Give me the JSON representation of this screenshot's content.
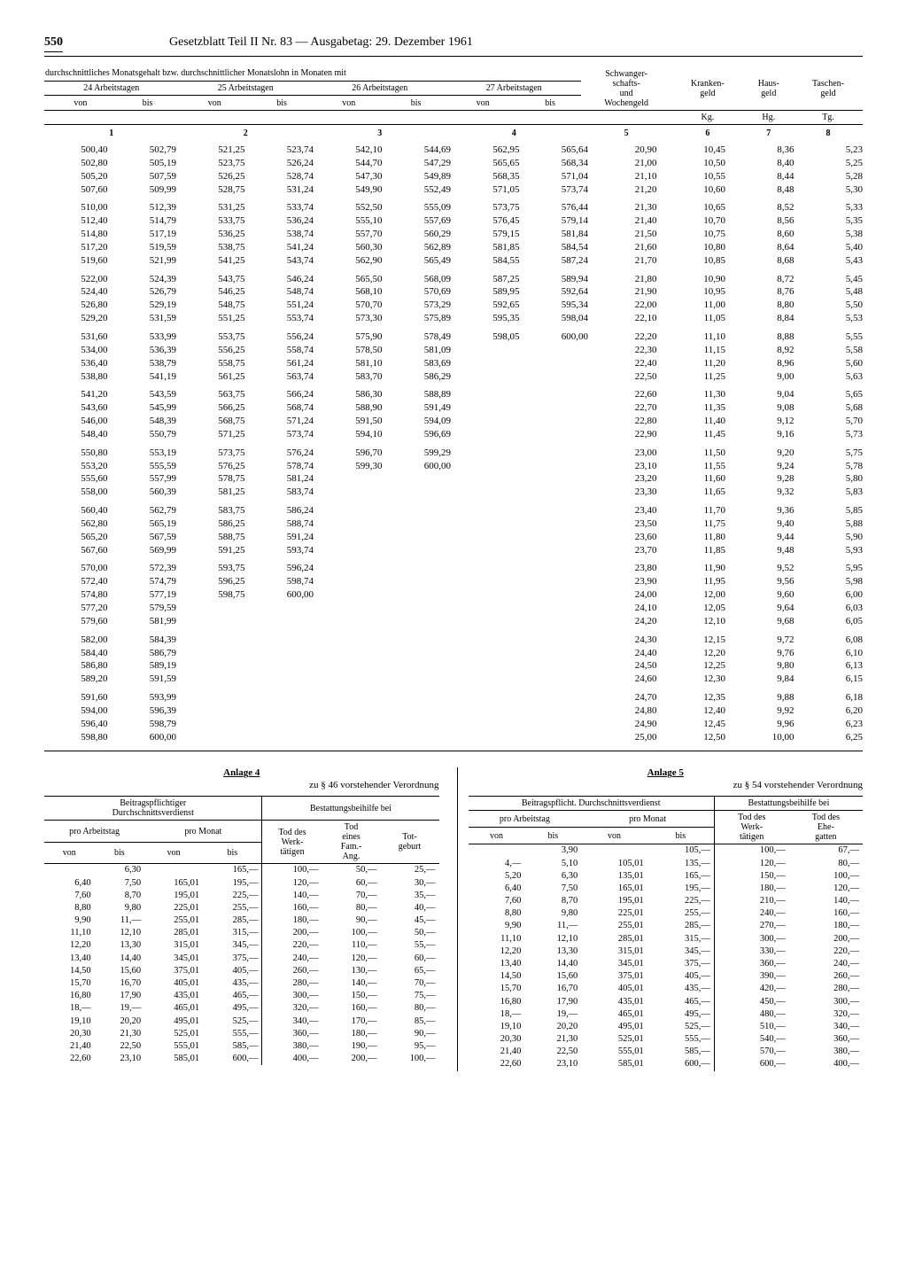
{
  "page_number": "550",
  "doc_title": "Gesetzblatt Teil II Nr. 83 — Ausgabetag: 29. Dezember 1961",
  "main": {
    "super_label": "durchschnittliches Monatsgehalt bzw. durchschnittlicher Monatslohn in Monaten mit",
    "groups": [
      "24 Arbeitstagen",
      "25 Arbeitstagen",
      "26 Arbeitstagen",
      "27 Arbeitstagen"
    ],
    "extra_cols": [
      "Schwanger-\nschafts-\nund\nWochengeld",
      "Kranken-\ngeld",
      "Haus-\ngeld",
      "Taschen-\ngeld"
    ],
    "sub_vb": [
      "von",
      "bis"
    ],
    "abbr": [
      "",
      "",
      "Kg.",
      "Hg.",
      "Tg."
    ],
    "colnums": [
      "1",
      "2",
      "3",
      "4",
      "5",
      "6",
      "7",
      "8"
    ],
    "columns": [
      [
        [
          "500,40",
          "502,80",
          "505,20",
          "507,60"
        ],
        [
          "510,00",
          "512,40",
          "514,80",
          "517,20",
          "519,60"
        ],
        [
          "522,00",
          "524,40",
          "526,80",
          "529,20"
        ],
        [
          "531,60",
          "534,00",
          "536,40",
          "538,80"
        ],
        [
          "541,20",
          "543,60",
          "546,00",
          "548,40"
        ],
        [
          "550,80",
          "553,20",
          "555,60",
          "558,00"
        ],
        [
          "560,40",
          "562,80",
          "565,20",
          "567,60"
        ],
        [
          "570,00",
          "572,40",
          "574,80",
          "577,20",
          "579,60"
        ],
        [
          "582,00",
          "584,40",
          "586,80",
          "589,20"
        ],
        [
          "591,60",
          "594,00",
          "596,40",
          "598,80"
        ]
      ],
      [
        [
          "502,79",
          "505,19",
          "507,59",
          "509,99"
        ],
        [
          "512,39",
          "514,79",
          "517,19",
          "519,59",
          "521,99"
        ],
        [
          "524,39",
          "526,79",
          "529,19",
          "531,59"
        ],
        [
          "533,99",
          "536,39",
          "538,79",
          "541,19"
        ],
        [
          "543,59",
          "545,99",
          "548,39",
          "550,79"
        ],
        [
          "553,19",
          "555,59",
          "557,99",
          "560,39"
        ],
        [
          "562,79",
          "565,19",
          "567,59",
          "569,99"
        ],
        [
          "572,39",
          "574,79",
          "577,19",
          "579,59",
          "581,99"
        ],
        [
          "584,39",
          "586,79",
          "589,19",
          "591,59"
        ],
        [
          "593,99",
          "596,39",
          "598,79",
          "600,00"
        ]
      ],
      [
        [
          "521,25",
          "523,75",
          "526,25",
          "528,75"
        ],
        [
          "531,25",
          "533,75",
          "536,25",
          "538,75",
          "541,25"
        ],
        [
          "543,75",
          "546,25",
          "548,75",
          "551,25"
        ],
        [
          "553,75",
          "556,25",
          "558,75",
          "561,25"
        ],
        [
          "563,75",
          "566,25",
          "568,75",
          "571,25"
        ],
        [
          "573,75",
          "576,25",
          "578,75",
          "581,25"
        ],
        [
          "583,75",
          "586,25",
          "588,75",
          "591,25"
        ],
        [
          "593,75",
          "596,25",
          "598,75"
        ]
      ],
      [
        [
          "523,74",
          "526,24",
          "528,74",
          "531,24"
        ],
        [
          "533,74",
          "536,24",
          "538,74",
          "541,24",
          "543,74"
        ],
        [
          "546,24",
          "548,74",
          "551,24",
          "553,74"
        ],
        [
          "556,24",
          "558,74",
          "561,24",
          "563,74"
        ],
        [
          "566,24",
          "568,74",
          "571,24",
          "573,74"
        ],
        [
          "576,24",
          "578,74",
          "581,24",
          "583,74"
        ],
        [
          "586,24",
          "588,74",
          "591,24",
          "593,74"
        ],
        [
          "596,24",
          "598,74",
          "600,00"
        ]
      ],
      [
        [
          "542,10",
          "544,70",
          "547,30",
          "549,90"
        ],
        [
          "552,50",
          "555,10",
          "557,70",
          "560,30",
          "562,90"
        ],
        [
          "565,50",
          "568,10",
          "570,70",
          "573,30"
        ],
        [
          "575,90",
          "578,50",
          "581,10",
          "583,70"
        ],
        [
          "586,30",
          "588,90",
          "591,50",
          "594,10"
        ],
        [
          "596,70",
          "599,30"
        ]
      ],
      [
        [
          "544,69",
          "547,29",
          "549,89",
          "552,49"
        ],
        [
          "555,09",
          "557,69",
          "560,29",
          "562,89",
          "565,49"
        ],
        [
          "568,09",
          "570,69",
          "573,29",
          "575,89"
        ],
        [
          "578,49",
          "581,09",
          "583,69",
          "586,29"
        ],
        [
          "588,89",
          "591,49",
          "594,09",
          "596,69"
        ],
        [
          "599,29",
          "600,00"
        ]
      ],
      [
        [
          "562,95",
          "565,65",
          "568,35",
          "571,05"
        ],
        [
          "573,75",
          "576,45",
          "579,15",
          "581,85",
          "584,55"
        ],
        [
          "587,25",
          "589,95",
          "592,65",
          "595,35"
        ],
        [
          "598,05"
        ]
      ],
      [
        [
          "565,64",
          "568,34",
          "571,04",
          "573,74"
        ],
        [
          "576,44",
          "579,14",
          "581,84",
          "584,54",
          "587,24"
        ],
        [
          "589,94",
          "592,64",
          "595,34",
          "598,04"
        ],
        [
          "600,00"
        ]
      ],
      [
        [
          "20,90",
          "21,00",
          "21,10",
          "21,20"
        ],
        [
          "21,30",
          "21,40",
          "21,50",
          "21,60",
          "21,70"
        ],
        [
          "21,80",
          "21,90",
          "22,00",
          "22,10"
        ],
        [
          "22,20",
          "22,30",
          "22,40",
          "22,50"
        ],
        [
          "22,60",
          "22,70",
          "22,80",
          "22,90"
        ],
        [
          "23,00",
          "23,10",
          "23,20",
          "23,30"
        ],
        [
          "23,40",
          "23,50",
          "23,60",
          "23,70"
        ],
        [
          "23,80",
          "23,90",
          "24,00",
          "24,10",
          "24,20"
        ],
        [
          "24,30",
          "24,40",
          "24,50",
          "24,60"
        ],
        [
          "24,70",
          "24,80",
          "24,90",
          "25,00"
        ]
      ],
      [
        [
          "10,45",
          "10,50",
          "10,55",
          "10,60"
        ],
        [
          "10,65",
          "10,70",
          "10,75",
          "10,80",
          "10,85"
        ],
        [
          "10,90",
          "10,95",
          "11,00",
          "11,05"
        ],
        [
          "11,10",
          "11,15",
          "11,20",
          "11,25"
        ],
        [
          "11,30",
          "11,35",
          "11,40",
          "11,45"
        ],
        [
          "11,50",
          "11,55",
          "11,60",
          "11,65"
        ],
        [
          "11,70",
          "11,75",
          "11,80",
          "11,85"
        ],
        [
          "11,90",
          "11,95",
          "12,00",
          "12,05",
          "12,10"
        ],
        [
          "12,15",
          "12,20",
          "12,25",
          "12,30"
        ],
        [
          "12,35",
          "12,40",
          "12,45",
          "12,50"
        ]
      ],
      [
        [
          "8,36",
          "8,40",
          "8,44",
          "8,48"
        ],
        [
          "8,52",
          "8,56",
          "8,60",
          "8,64",
          "8,68"
        ],
        [
          "8,72",
          "8,76",
          "8,80",
          "8,84"
        ],
        [
          "8,88",
          "8,92",
          "8,96",
          "9,00"
        ],
        [
          "9,04",
          "9,08",
          "9,12",
          "9,16"
        ],
        [
          "9,20",
          "9,24",
          "9,28",
          "9,32"
        ],
        [
          "9,36",
          "9,40",
          "9,44",
          "9,48"
        ],
        [
          "9,52",
          "9,56",
          "9,60",
          "9,64",
          "9,68"
        ],
        [
          "9,72",
          "9,76",
          "9,80",
          "9,84"
        ],
        [
          "9,88",
          "9,92",
          "9,96",
          "10,00"
        ]
      ],
      [
        [
          "5,23",
          "5,25",
          "5,28",
          "5,30"
        ],
        [
          "5,33",
          "5,35",
          "5,38",
          "5,40",
          "5,43"
        ],
        [
          "5,45",
          "5,48",
          "5,50",
          "5,53"
        ],
        [
          "5,55",
          "5,58",
          "5,60",
          "5,63"
        ],
        [
          "5,65",
          "5,68",
          "5,70",
          "5,73"
        ],
        [
          "5,75",
          "5,78",
          "5,80",
          "5,83"
        ],
        [
          "5,85",
          "5,88",
          "5,90",
          "5,93"
        ],
        [
          "5,95",
          "5,98",
          "6,00",
          "6,03",
          "6,05"
        ],
        [
          "6,08",
          "6,10",
          "6,13",
          "6,15"
        ],
        [
          "6,18",
          "6,20",
          "6,23",
          "6,25"
        ]
      ]
    ]
  },
  "anlage4": {
    "title": "Anlage 4",
    "subtitle": "zu § 46 vorstehender Verordnung",
    "head_top_left": "Beitragspflichtiger\nDurchschnittsverdienst",
    "head_top_right": "Bestattungsbeihilfe bei",
    "head_l": [
      "pro Arbeitstag",
      "pro Monat"
    ],
    "head_r": [
      "Tod des\nWerk-\ntätigen",
      "Tod\neines\nFam.-\nAng.",
      "Tot-\ngeburt"
    ],
    "sub_vb": [
      "von",
      "bis",
      "von",
      "bis"
    ],
    "rows": [
      [
        "",
        "6,30",
        "",
        "165,—",
        "100,—",
        "50,—",
        "25,—"
      ],
      [
        "6,40",
        "7,50",
        "165,01",
        "195,—",
        "120,—",
        "60,—",
        "30,—"
      ],
      [
        "7,60",
        "8,70",
        "195,01",
        "225,—",
        "140,—",
        "70,—",
        "35,—"
      ],
      [
        "8,80",
        "9,80",
        "225,01",
        "255,—",
        "160,—",
        "80,—",
        "40,—"
      ],
      [
        "9,90",
        "11,—",
        "255,01",
        "285,—",
        "180,—",
        "90,—",
        "45,—"
      ],
      [
        "11,10",
        "12,10",
        "285,01",
        "315,—",
        "200,—",
        "100,—",
        "50,—"
      ],
      [
        "12,20",
        "13,30",
        "315,01",
        "345,—",
        "220,—",
        "110,—",
        "55,—"
      ],
      [
        "13,40",
        "14,40",
        "345,01",
        "375,—",
        "240,—",
        "120,—",
        "60,—"
      ],
      [
        "14,50",
        "15,60",
        "375,01",
        "405,—",
        "260,—",
        "130,—",
        "65,—"
      ],
      [
        "15,70",
        "16,70",
        "405,01",
        "435,—",
        "280,—",
        "140,—",
        "70,—"
      ],
      [
        "16,80",
        "17,90",
        "435,01",
        "465,—",
        "300,—",
        "150,—",
        "75,—"
      ],
      [
        "18,—",
        "19,—",
        "465,01",
        "495,—",
        "320,—",
        "160,—",
        "80,—"
      ],
      [
        "19,10",
        "20,20",
        "495,01",
        "525,—",
        "340,—",
        "170,—",
        "85,—"
      ],
      [
        "20,30",
        "21,30",
        "525,01",
        "555,—",
        "360,—",
        "180,—",
        "90,—"
      ],
      [
        "21,40",
        "22,50",
        "555,01",
        "585,—",
        "380,—",
        "190,—",
        "95,—"
      ],
      [
        "22,60",
        "23,10",
        "585,01",
        "600,—",
        "400,—",
        "200,—",
        "100,—"
      ]
    ]
  },
  "anlage5": {
    "title": "Anlage 5",
    "subtitle": "zu § 54 vorstehender Verordnung",
    "head_top_left": "Beitragspflicht. Durchschnittsverdienst",
    "head_top_right": "Bestattungsbeihilfe bei",
    "head_l": [
      "pro Arbeitstag",
      "pro Monat"
    ],
    "head_r": [
      "Tod des\nWerk-\ntätigen",
      "Tod des\nEhe-\ngatten"
    ],
    "sub_vb": [
      "von",
      "bis",
      "von",
      "bis"
    ],
    "rows": [
      [
        "",
        "3,90",
        "",
        "105,—",
        "100,—",
        "67,—"
      ],
      [
        "4,—",
        "5,10",
        "105,01",
        "135,—",
        "120,—",
        "80,—"
      ],
      [
        "5,20",
        "6,30",
        "135,01",
        "165,—",
        "150,—",
        "100,—"
      ],
      [
        "6,40",
        "7,50",
        "165,01",
        "195,—",
        "180,—",
        "120,—"
      ],
      [
        "7,60",
        "8,70",
        "195,01",
        "225,—",
        "210,—",
        "140,—"
      ],
      [
        "8,80",
        "9,80",
        "225,01",
        "255,—",
        "240,—",
        "160,—"
      ],
      [
        "9,90",
        "11,—",
        "255,01",
        "285,—",
        "270,—",
        "180,—"
      ],
      [
        "11,10",
        "12,10",
        "285,01",
        "315,—",
        "300,—",
        "200,—"
      ],
      [
        "12,20",
        "13,30",
        "315,01",
        "345,—",
        "330,—",
        "220,—"
      ],
      [
        "13,40",
        "14,40",
        "345,01",
        "375,—",
        "360,—",
        "240,—"
      ],
      [
        "14,50",
        "15,60",
        "375,01",
        "405,—",
        "390,—",
        "260,—"
      ],
      [
        "15,70",
        "16,70",
        "405,01",
        "435,—",
        "420,—",
        "280,—"
      ],
      [
        "16,80",
        "17,90",
        "435,01",
        "465,—",
        "450,—",
        "300,—"
      ],
      [
        "18,—",
        "19,—",
        "465,01",
        "495,—",
        "480,—",
        "320,—"
      ],
      [
        "19,10",
        "20,20",
        "495,01",
        "525,—",
        "510,—",
        "340,—"
      ],
      [
        "20,30",
        "21,30",
        "525,01",
        "555,—",
        "540,—",
        "360,—"
      ],
      [
        "21,40",
        "22,50",
        "555,01",
        "585,—",
        "570,—",
        "380,—"
      ],
      [
        "22,60",
        "23,10",
        "585,01",
        "600,—",
        "600,—",
        "400,—"
      ]
    ]
  }
}
